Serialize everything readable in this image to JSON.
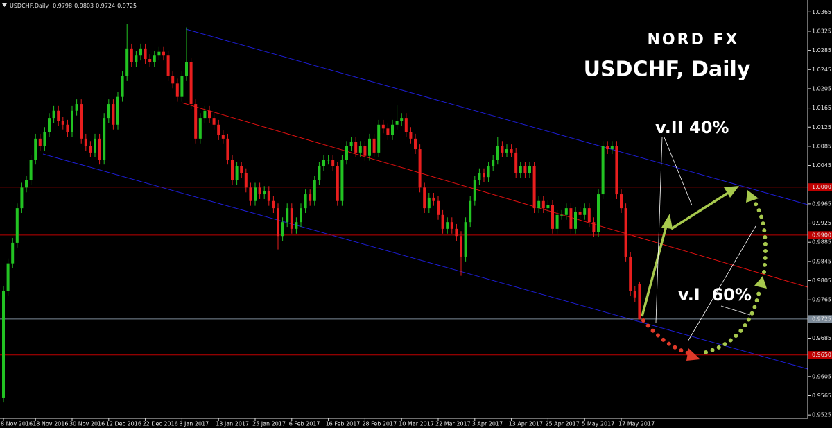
{
  "chart_data": {
    "type": "candlestick",
    "symbol": "USDCHF,Daily",
    "title": "USDCHF, Daily",
    "logo": "NORD FX",
    "annotations": [
      "v.II 40%",
      "v.I  60%"
    ],
    "up_color": "#22c322",
    "down_color": "#e81e1e",
    "ylim": [
      0.9518,
      1.039
    ],
    "yticks": [
      1.0365,
      1.0325,
      1.0285,
      1.0245,
      1.0205,
      1.0165,
      1.0125,
      1.0085,
      1.0045,
      0.9965,
      0.9925,
      0.9885,
      0.9845,
      0.9805,
      0.9765,
      0.9685,
      0.9605,
      0.9565,
      0.9525
    ],
    "hlines": [
      {
        "value": 1,
        "label": "1.0000",
        "color": "#c00000"
      },
      {
        "value": 0.99,
        "label": "0.9900",
        "color": "#c00000"
      },
      {
        "value": 0.9725,
        "label": "0.9725",
        "color": "#7d8b99"
      },
      {
        "value": 0.965,
        "label": "0.9650",
        "color": "#c00000"
      }
    ],
    "categories": [
      "8 Nov 2016",
      null,
      null,
      null,
      null,
      null,
      null,
      "18 Nov 2016",
      null,
      null,
      null,
      null,
      null,
      null,
      null,
      "30 Nov 2016",
      null,
      null,
      null,
      null,
      null,
      null,
      null,
      "12 Dec 2016",
      null,
      null,
      null,
      null,
      null,
      null,
      null,
      "22 Dec 2016",
      null,
      null,
      null,
      null,
      null,
      null,
      null,
      "3 Jan 2017",
      null,
      null,
      null,
      null,
      null,
      null,
      null,
      "13 Jan 2017",
      null,
      null,
      null,
      null,
      null,
      null,
      null,
      "25 Jan 2017",
      null,
      null,
      null,
      null,
      null,
      null,
      null,
      "6 Feb 2017",
      null,
      null,
      null,
      null,
      null,
      null,
      null,
      "16 Feb 2017",
      null,
      null,
      null,
      null,
      null,
      null,
      null,
      "28 Feb 2017",
      null,
      null,
      null,
      null,
      null,
      null,
      null,
      "10 Mar 2017",
      null,
      null,
      null,
      null,
      null,
      null,
      null,
      "22 Mar 2017",
      null,
      null,
      null,
      null,
      null,
      null,
      null,
      "3 Apr 2017",
      null,
      null,
      null,
      null,
      null,
      null,
      null,
      "13 Apr 2017",
      null,
      null,
      null,
      null,
      null,
      null,
      null,
      "25 Apr 2017",
      null,
      null,
      null,
      null,
      null,
      null,
      null,
      "5 May 2017",
      null,
      null,
      null,
      null,
      null,
      null,
      null,
      "17 May 2017",
      null,
      null,
      null,
      null
    ],
    "ohlc": [
      [
        0.956,
        0.9793,
        0.9551,
        0.9783
      ],
      [
        0.9783,
        0.9851,
        0.9773,
        0.9841
      ],
      [
        0.9841,
        0.9894,
        0.9831,
        0.9884
      ],
      [
        0.9884,
        0.9966,
        0.9874,
        0.9956
      ],
      [
        0.9956,
        1.0009,
        0.9946,
        0.9999
      ],
      [
        0.9999,
        1.0024,
        0.9989,
        1.0014
      ],
      [
        1.0014,
        1.0067,
        1.0004,
        1.0057
      ],
      [
        1.0057,
        1.0111,
        1.0047,
        1.0101
      ],
      [
        1.0101,
        1.0111,
        1.0076,
        1.0086
      ],
      [
        1.0086,
        1.0125,
        1.0076,
        1.0115
      ],
      [
        1.0115,
        1.0154,
        1.0105,
        1.0144
      ],
      [
        1.0144,
        1.0169,
        1.0134,
        1.0159
      ],
      [
        1.0159,
        1.0169,
        1.0127,
        1.0137
      ],
      [
        1.0137,
        1.0147,
        1.012,
        1.013
      ],
      [
        1.013,
        1.014,
        1.0105,
        1.0115
      ],
      [
        1.0115,
        1.0169,
        1.0105,
        1.0159
      ],
      [
        1.0159,
        1.0183,
        1.0149,
        1.0173
      ],
      [
        1.0173,
        1.0183,
        1.0091,
        1.0101
      ],
      [
        1.0101,
        1.0111,
        1.0076,
        1.0086
      ],
      [
        1.0086,
        1.0096,
        1.0062,
        1.0072
      ],
      [
        1.0072,
        1.0111,
        1.0062,
        1.0101
      ],
      [
        1.0101,
        1.0111,
        1.0047,
        1.0057
      ],
      [
        1.0057,
        1.0154,
        1.0047,
        1.0144
      ],
      [
        1.0144,
        1.0183,
        1.0134,
        1.0173
      ],
      [
        1.0173,
        1.0183,
        1.012,
        1.013
      ],
      [
        1.013,
        1.0198,
        1.012,
        1.0188
      ],
      [
        1.0188,
        1.0241,
        1.0178,
        1.0231
      ],
      [
        1.0231,
        1.034,
        1.0221,
        1.0289
      ],
      [
        1.0289,
        1.0299,
        1.025,
        1.026
      ],
      [
        1.026,
        1.0284,
        1.025,
        1.0274
      ],
      [
        1.0274,
        1.0299,
        1.0264,
        1.0289
      ],
      [
        1.0289,
        1.0299,
        1.0257,
        1.0267
      ],
      [
        1.0267,
        1.0277,
        1.025,
        1.026
      ],
      [
        1.026,
        1.0284,
        1.025,
        1.0274
      ],
      [
        1.0274,
        1.0292,
        1.0264,
        1.0282
      ],
      [
        1.0282,
        1.0292,
        1.0264,
        1.0274
      ],
      [
        1.0274,
        1.0284,
        1.0221,
        1.0231
      ],
      [
        1.0231,
        1.0241,
        1.0206,
        1.0216
      ],
      [
        1.0216,
        1.0226,
        1.0178,
        1.0188
      ],
      [
        1.0188,
        1.0241,
        1.0178,
        1.0231
      ],
      [
        1.0231,
        1.0333,
        1.0221,
        1.026
      ],
      [
        1.026,
        1.027,
        1.0163,
        1.0173
      ],
      [
        1.0173,
        1.0183,
        1.0091,
        1.0101
      ],
      [
        1.0101,
        1.0154,
        1.0091,
        1.0144
      ],
      [
        1.0144,
        1.0169,
        1.0134,
        1.0159
      ],
      [
        1.0159,
        1.0169,
        1.0134,
        1.0144
      ],
      [
        1.0144,
        1.0154,
        1.012,
        1.013
      ],
      [
        1.013,
        1.014,
        1.0098,
        1.0108
      ],
      [
        1.0108,
        1.0118,
        1.0091,
        1.0101
      ],
      [
        1.0101,
        1.0111,
        1.0047,
        1.0057
      ],
      [
        1.0057,
        1.0067,
        1.0004,
        1.0014
      ],
      [
        1.0014,
        1.0053,
        1.0004,
        1.0043
      ],
      [
        1.0043,
        1.0053,
        1.0019,
        1.0029
      ],
      [
        1.0029,
        1.0039,
        0.9989,
        0.9999
      ],
      [
        0.9999,
        1.0009,
        0.9961,
        0.9971
      ],
      [
        0.9971,
        1.0009,
        0.9961,
        0.9999
      ],
      [
        0.9999,
        1.0009,
        0.9975,
        0.9985
      ],
      [
        0.9985,
        1.0002,
        0.9975,
        0.9992
      ],
      [
        0.9992,
        1.0002,
        0.9961,
        0.9971
      ],
      [
        0.9971,
        0.9981,
        0.9946,
        0.9956
      ],
      [
        0.9956,
        0.9966,
        0.987,
        0.9898
      ],
      [
        0.9898,
        0.9937,
        0.9888,
        0.9927
      ],
      [
        0.9927,
        0.9966,
        0.9917,
        0.9956
      ],
      [
        0.9956,
        0.9966,
        0.9903,
        0.9913
      ],
      [
        0.9913,
        0.9937,
        0.9903,
        0.9927
      ],
      [
        0.9927,
        0.9966,
        0.9917,
        0.9956
      ],
      [
        0.9956,
        0.9995,
        0.9946,
        0.9985
      ],
      [
        0.9985,
        0.9995,
        0.9961,
        0.9971
      ],
      [
        0.9971,
        1.0024,
        0.9961,
        1.0014
      ],
      [
        1.0014,
        1.0053,
        1.0004,
        1.0043
      ],
      [
        1.0043,
        1.0067,
        1.0033,
        1.0057
      ],
      [
        1.0057,
        1.0067,
        1.0047,
        1.0057
      ],
      [
        1.0057,
        1.0067,
        1.0033,
        1.0043
      ],
      [
        1.0043,
        1.0053,
        0.9961,
        0.9971
      ],
      [
        0.9971,
        1.0067,
        0.9961,
        1.0057
      ],
      [
        1.0057,
        1.0096,
        1.0047,
        1.0086
      ],
      [
        1.0086,
        1.0104,
        1.0076,
        1.0094
      ],
      [
        1.0094,
        1.0104,
        1.0062,
        1.0072
      ],
      [
        1.0072,
        1.0096,
        1.0062,
        1.0086
      ],
      [
        1.0086,
        1.0096,
        1.0055,
        1.0065
      ],
      [
        1.0065,
        1.0111,
        1.0055,
        1.0101
      ],
      [
        1.0101,
        1.0111,
        1.0062,
        1.0072
      ],
      [
        1.0072,
        1.014,
        1.0062,
        1.013
      ],
      [
        1.013,
        1.014,
        1.0112,
        1.0122
      ],
      [
        1.0122,
        1.0132,
        1.0098,
        1.0108
      ],
      [
        1.0108,
        1.014,
        1.0098,
        1.013
      ],
      [
        1.013,
        1.017,
        1.012,
        1.0137
      ],
      [
        1.0137,
        1.0154,
        1.0127,
        1.0144
      ],
      [
        1.0144,
        1.0154,
        1.0105,
        1.0115
      ],
      [
        1.0115,
        1.0125,
        1.0091,
        1.0101
      ],
      [
        1.0101,
        1.0111,
        1.0069,
        1.0079
      ],
      [
        1.0079,
        1.0089,
        0.9989,
        0.9999
      ],
      [
        0.9999,
        1.0009,
        0.9946,
        0.9956
      ],
      [
        0.9956,
        0.9988,
        0.9946,
        0.9978
      ],
      [
        0.9978,
        0.9988,
        0.9961,
        0.9971
      ],
      [
        0.9971,
        0.9981,
        0.9932,
        0.9942
      ],
      [
        0.9942,
        0.9952,
        0.9903,
        0.9913
      ],
      [
        0.9913,
        0.9937,
        0.9903,
        0.9927
      ],
      [
        0.9927,
        0.9937,
        0.9903,
        0.9913
      ],
      [
        0.9913,
        0.9923,
        0.9888,
        0.9898
      ],
      [
        0.9898,
        0.9908,
        0.9815,
        0.9855
      ],
      [
        0.9855,
        0.9937,
        0.9845,
        0.9927
      ],
      [
        0.9927,
        0.9981,
        0.9917,
        0.9971
      ],
      [
        0.9971,
        1.0024,
        0.9961,
        1.0014
      ],
      [
        1.0014,
        1.0039,
        1.0004,
        1.0029
      ],
      [
        1.0029,
        1.0039,
        1.0011,
        1.0021
      ],
      [
        1.0021,
        1.0053,
        1.0011,
        1.0043
      ],
      [
        1.0043,
        1.0067,
        1.0033,
        1.0057
      ],
      [
        1.0057,
        1.0105,
        1.0047,
        1.0086
      ],
      [
        1.0086,
        1.0096,
        1.0062,
        1.0072
      ],
      [
        1.0072,
        1.0089,
        1.0062,
        1.0079
      ],
      [
        1.0079,
        1.0089,
        1.0062,
        1.0072
      ],
      [
        1.0072,
        1.0082,
        1.0019,
        1.0029
      ],
      [
        1.0029,
        1.0053,
        1.0019,
        1.0043
      ],
      [
        1.0043,
        1.0053,
        1.0019,
        1.0029
      ],
      [
        1.0029,
        1.0053,
        1.0019,
        1.0043
      ],
      [
        1.0043,
        1.0053,
        0.9946,
        0.9956
      ],
      [
        0.9956,
        0.9981,
        0.9946,
        0.9971
      ],
      [
        0.9971,
        0.9981,
        0.9946,
        0.9956
      ],
      [
        0.9956,
        0.9973,
        0.9946,
        0.9963
      ],
      [
        0.9963,
        0.9973,
        0.9903,
        0.9913
      ],
      [
        0.9913,
        0.9952,
        0.9903,
        0.9942
      ],
      [
        0.9942,
        0.9952,
        0.9932,
        0.9942
      ],
      [
        0.9942,
        0.9966,
        0.9932,
        0.9956
      ],
      [
        0.9956,
        0.9966,
        0.9903,
        0.9913
      ],
      [
        0.9913,
        0.9959,
        0.9903,
        0.9949
      ],
      [
        0.9949,
        0.9959,
        0.9932,
        0.9942
      ],
      [
        0.9942,
        0.9966,
        0.9932,
        0.9956
      ],
      [
        0.9956,
        0.9966,
        0.9917,
        0.9927
      ],
      [
        0.9927,
        0.9937,
        0.9896,
        0.9906
      ],
      [
        0.9906,
        0.9995,
        0.9896,
        0.9985
      ],
      [
        0.9985,
        1.0096,
        0.9975,
        1.0086
      ],
      [
        1.0086,
        1.0096,
        1.0069,
        1.0079
      ],
      [
        1.0079,
        1.0096,
        1.0069,
        1.0086
      ],
      [
        1.0086,
        1.0096,
        0.9975,
        0.9985
      ],
      [
        0.9985,
        0.9995,
        0.9946,
        0.9956
      ],
      [
        0.9956,
        0.9966,
        0.9845,
        0.9855
      ],
      [
        0.9855,
        0.9865,
        0.9773,
        0.9783
      ],
      [
        0.9783,
        0.9793,
        0.976,
        0.977
      ],
      [
        0.9798,
        0.9803,
        0.9724,
        0.9725
      ]
    ]
  }
}
